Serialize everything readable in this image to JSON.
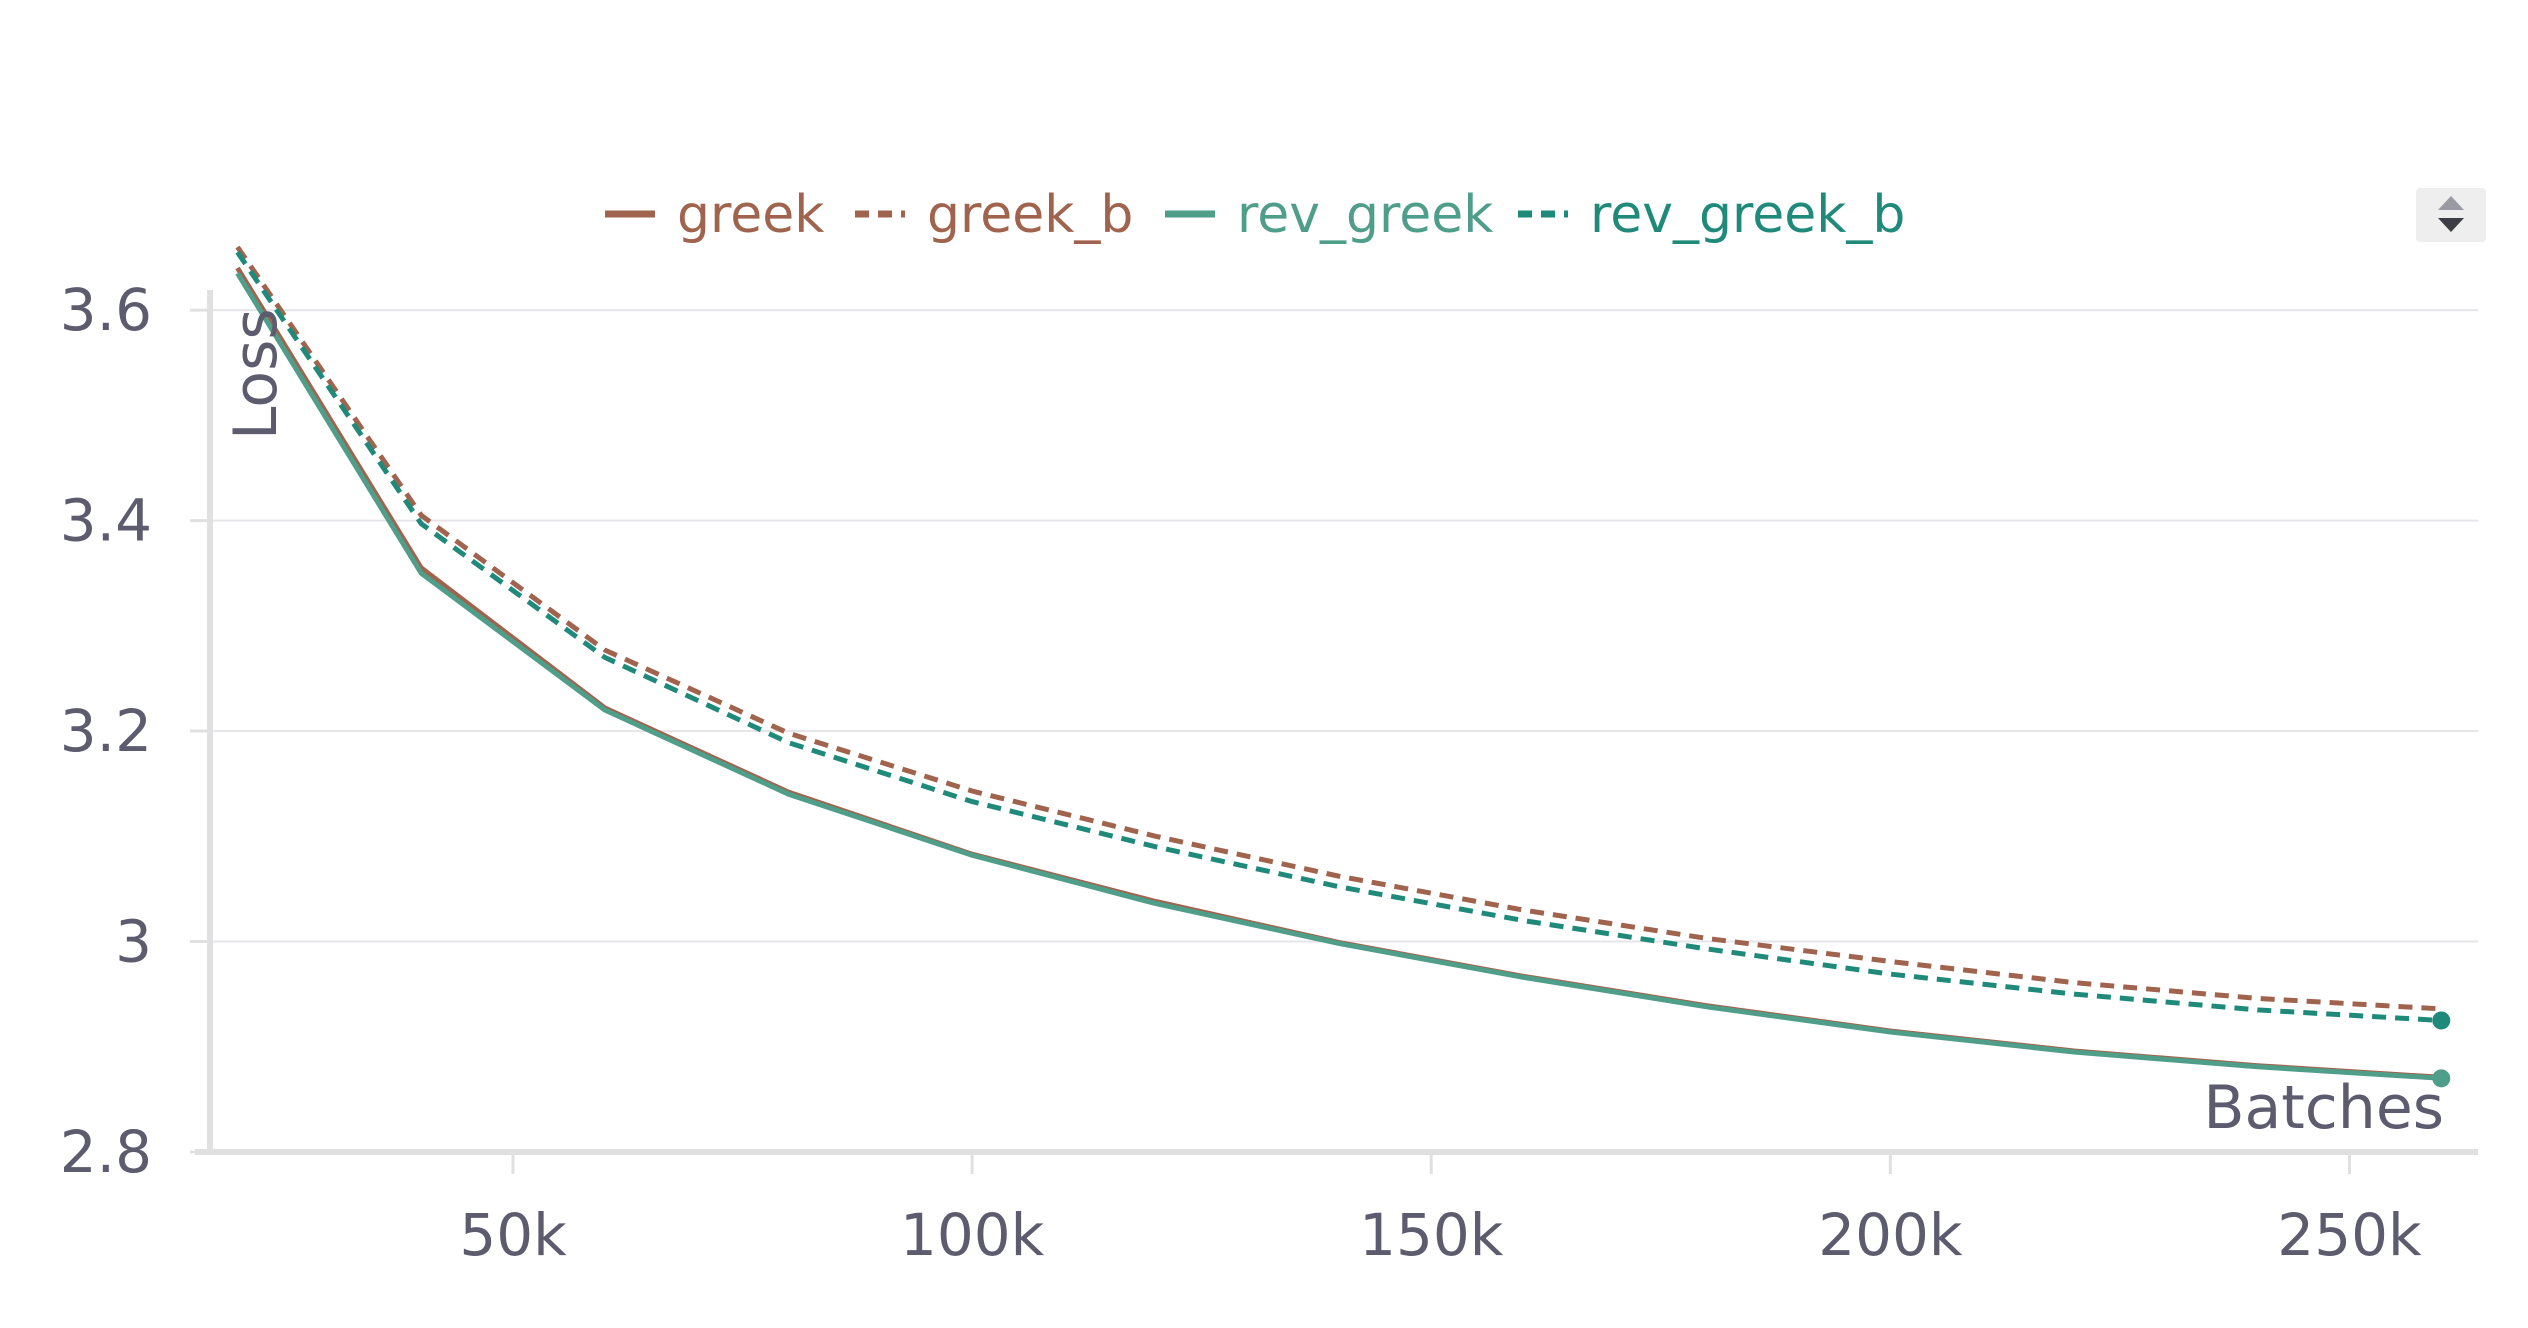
{
  "chart_data": {
    "type": "line",
    "title": "",
    "xlabel": "Batches",
    "ylabel": "Loss",
    "x": [
      20000,
      40000,
      60000,
      80000,
      100000,
      120000,
      140000,
      160000,
      180000,
      200000,
      220000,
      240000,
      260000
    ],
    "x_ticks": [
      50000,
      100000,
      150000,
      200000,
      250000
    ],
    "x_tick_labels": [
      "50k",
      "100k",
      "150k",
      "200k",
      "250k"
    ],
    "y_ticks": [
      2.8,
      3.0,
      3.2,
      3.4,
      3.6
    ],
    "y_tick_labels": [
      "2.8",
      "3",
      "3.2",
      "3.4",
      "3.6"
    ],
    "xlim": [
      17000,
      264000
    ],
    "ylim": [
      2.8,
      3.64
    ],
    "grid": true,
    "legend_position": "top",
    "series": [
      {
        "name": "greek",
        "color": "#a0634d",
        "dash": "solid",
        "values": [
          3.64,
          3.355,
          3.222,
          3.142,
          3.083,
          3.038,
          2.999,
          2.967,
          2.939,
          2.915,
          2.896,
          2.882,
          2.871
        ]
      },
      {
        "name": "greek_b",
        "color": "#a0634d",
        "dash": "dashed",
        "values": [
          3.66,
          3.405,
          3.277,
          3.198,
          3.143,
          3.1,
          3.062,
          3.03,
          3.003,
          2.981,
          2.961,
          2.946,
          2.936
        ]
      },
      {
        "name": "rev_greek",
        "color": "#4f9e8a",
        "dash": "solid",
        "values": [
          3.635,
          3.35,
          3.22,
          3.14,
          3.082,
          3.036,
          2.998,
          2.966,
          2.938,
          2.914,
          2.895,
          2.881,
          2.87
        ]
      },
      {
        "name": "rev_greek_b",
        "color": "#1f8a7a",
        "dash": "dashed",
        "values": [
          3.655,
          3.397,
          3.27,
          3.189,
          3.133,
          3.09,
          3.052,
          3.02,
          2.993,
          2.969,
          2.95,
          2.935,
          2.925
        ]
      }
    ]
  }
}
